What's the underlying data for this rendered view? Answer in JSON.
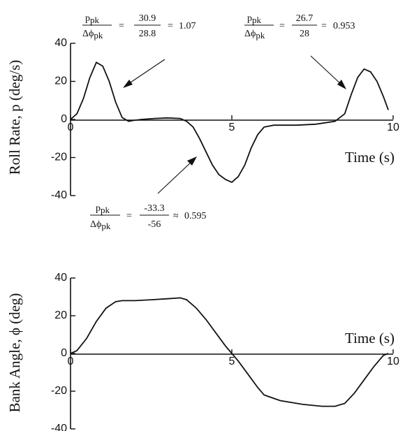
{
  "chart_data": [
    {
      "type": "line",
      "title": "",
      "xlabel": "Time (s)",
      "ylabel": "Roll Rate, p (deg/s)",
      "xlim": [
        0,
        10
      ],
      "ylim": [
        -40,
        40
      ],
      "xticks": [
        "0",
        "5",
        "10"
      ],
      "yticks": [
        "40",
        "20",
        "0",
        "-20",
        "-40"
      ],
      "grid": false,
      "series": [
        {
          "x": [
            0,
            0.2,
            0.4,
            0.6,
            0.8,
            1.0,
            1.2,
            1.4,
            1.6,
            1.8,
            1.95,
            2.2,
            2.6,
            3.0,
            3.4,
            3.6,
            3.8,
            4.0,
            4.2,
            4.4,
            4.6,
            4.8,
            5.0,
            5.2,
            5.4,
            5.6,
            5.8,
            6.0,
            6.3,
            7.0,
            7.6,
            8.2,
            8.5,
            8.7,
            8.9,
            9.1,
            9.3,
            9.5,
            9.7,
            9.85
          ],
          "y": [
            0,
            3,
            11,
            22,
            30,
            28,
            20,
            9,
            1,
            -1,
            -0.5,
            0,
            0.5,
            0.8,
            0.5,
            -1,
            -4,
            -10,
            -17,
            -24,
            -29,
            -31.5,
            -33,
            -30,
            -24,
            -15,
            -8,
            -4,
            -3,
            -3,
            -2.5,
            -1,
            3,
            13,
            22,
            26.5,
            25,
            20,
            12,
            5
          ]
        }
      ],
      "annotations": [
        {
          "num": "p",
          "num_sub": "pk",
          "den": "Δϕ",
          "den_sub": "pk",
          "eq": "=",
          "frac_num": "30.9",
          "frac_den": "28.8",
          "result_op": "=",
          "result": "1.07"
        },
        {
          "num": "p",
          "num_sub": "pk",
          "den": "Δϕ",
          "den_sub": "pk",
          "eq": "=",
          "frac_num": "26.7",
          "frac_den": "28",
          "result_op": "=",
          "result": "0.953"
        },
        {
          "num": "p",
          "num_sub": "pk",
          "den": "Δϕ",
          "den_sub": "pk",
          "eq": "=",
          "frac_num": "-33.3",
          "frac_den": "-56",
          "result_op": "≈",
          "result": "0.595"
        }
      ]
    },
    {
      "type": "line",
      "title": "",
      "xlabel": "Time (s)",
      "ylabel": "Bank Angle, ϕ (deg)",
      "xlim": [
        0,
        10
      ],
      "ylim": [
        -40,
        40
      ],
      "xticks": [
        "0",
        "5",
        "10"
      ],
      "yticks": [
        "40",
        "20",
        "0",
        "-20",
        "-40"
      ],
      "grid": false,
      "series": [
        {
          "x": [
            0,
            0.2,
            0.5,
            0.8,
            1.1,
            1.4,
            1.6,
            2.0,
            2.5,
            3.0,
            3.4,
            3.6,
            3.9,
            4.2,
            4.5,
            4.8,
            5.0,
            5.2,
            5.5,
            5.8,
            6.0,
            6.5,
            7.2,
            7.8,
            8.2,
            8.5,
            8.8,
            9.1,
            9.4,
            9.7,
            9.85
          ],
          "y": [
            0,
            1.5,
            8,
            17,
            24,
            27.5,
            28,
            28,
            28.5,
            29,
            29.5,
            28.5,
            24,
            18,
            11,
            4,
            0,
            -4,
            -11,
            -18,
            -22,
            -25,
            -27,
            -28,
            -28,
            -26.5,
            -21,
            -14,
            -7,
            -1,
            0
          ]
        }
      ]
    }
  ]
}
